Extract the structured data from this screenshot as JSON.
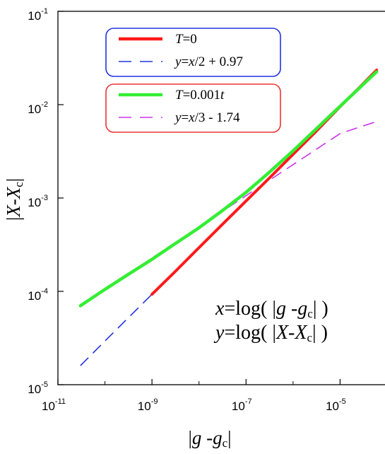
{
  "chart_data": {
    "type": "line",
    "xscale": "log",
    "yscale": "log",
    "xlim": [
      1e-11,
      0.0001
    ],
    "ylim": [
      1e-05,
      0.1
    ],
    "grid": false,
    "x_ticks": [
      {
        "base": "10",
        "exp": "-11",
        "value": 1e-11
      },
      {
        "base": "10",
        "exp": "-9",
        "value": 1e-09
      },
      {
        "base": "10",
        "exp": "-7",
        "value": 1e-07
      },
      {
        "base": "10",
        "exp": "-5",
        "value": 1e-05
      }
    ],
    "y_ticks": [
      {
        "base": "10",
        "exp": "-5",
        "value": 1e-05
      },
      {
        "base": "10",
        "exp": "-4",
        "value": 0.0001
      },
      {
        "base": "10",
        "exp": "-3",
        "value": 0.001
      },
      {
        "base": "10",
        "exp": "-2",
        "value": 0.01
      },
      {
        "base": "10",
        "exp": "-1",
        "value": 0.1
      }
    ],
    "xlabel": {
      "pre": "|",
      "var": "g",
      "mid": " -",
      "var2": "g",
      "sub": "c",
      "post": "|"
    },
    "ylabel": {
      "pre": "|",
      "var": "X",
      "mid": "-",
      "var2": "X",
      "sub": "c",
      "post": "|"
    },
    "legend_groups": [
      {
        "placement": "top-left",
        "border_color": "#2233dd",
        "entries": [
          {
            "series_index": 0,
            "label_parts": [
              {
                "t": "T",
                "i": true
              },
              {
                "t": "=0",
                "i": false
              }
            ]
          },
          {
            "series_index": 1,
            "label_parts": [
              {
                "t": "y",
                "i": true
              },
              {
                "t": "=",
                "i": false
              },
              {
                "t": "x",
                "i": true
              },
              {
                "t": "/2 + 0.97",
                "i": false
              }
            ]
          }
        ]
      },
      {
        "placement": "top-left",
        "border_color": "#ee3333",
        "entries": [
          {
            "series_index": 2,
            "label_parts": [
              {
                "t": "T",
                "i": true
              },
              {
                "t": "=0.001",
                "i": false
              },
              {
                "t": "t",
                "i": true
              }
            ]
          },
          {
            "series_index": 3,
            "label_parts": [
              {
                "t": "y",
                "i": true
              },
              {
                "t": "=",
                "i": false
              },
              {
                "t": "x",
                "i": true
              },
              {
                "t": "/3 - 1.74",
                "i": false
              }
            ]
          }
        ]
      }
    ],
    "annotations": [
      {
        "parts": [
          {
            "t": "x",
            "i": true
          },
          {
            "t": "=log( |",
            "i": false
          },
          {
            "t": "g",
            "i": true
          },
          {
            "t": " -",
            "i": false
          },
          {
            "t": "g",
            "i": true
          },
          {
            "t": "c",
            "i": false,
            "sub": true
          },
          {
            "t": "| )",
            "i": false
          }
        ]
      },
      {
        "parts": [
          {
            "t": "y",
            "i": true
          },
          {
            "t": "=log( |",
            "i": false
          },
          {
            "t": "X",
            "i": true
          },
          {
            "t": "-",
            "i": false
          },
          {
            "t": "X",
            "i": true
          },
          {
            "t": "c",
            "i": false,
            "sub": true
          },
          {
            "t": "| )",
            "i": false
          }
        ]
      }
    ],
    "series": [
      {
        "color": "#ff1a1a",
        "style": "solid",
        "width": 4,
        "x": [
          1e-09,
          3e-09,
          1e-08,
          3e-08,
          1e-07,
          3e-07,
          1e-06,
          3e-06,
          1e-05,
          3e-05,
          6e-05
        ],
        "y": [
          9.3e-05,
          0.00016,
          0.000294,
          0.00051,
          0.00093,
          0.0016,
          0.00294,
          0.0051,
          0.0095,
          0.0165,
          0.0235
        ]
      },
      {
        "color": "#2233dd",
        "style": "dashed",
        "width": 1.6,
        "x": [
          3e-11,
          1e-10,
          1e-09,
          1e-08,
          1e-07,
          1e-06,
          1e-05,
          6e-05
        ],
        "y": [
          1.6e-05,
          2.94e-05,
          9.3e-05,
          0.000294,
          0.00093,
          0.00294,
          0.0093,
          0.0228
        ]
      },
      {
        "color": "#33ee33",
        "style": "solid",
        "width": 4.5,
        "x": [
          3e-11,
          1e-10,
          3e-10,
          1e-09,
          3e-09,
          1e-08,
          3e-08,
          1e-07,
          3e-07,
          1e-06,
          3e-06,
          1e-05,
          3e-05,
          6e-05
        ],
        "y": [
          7e-05,
          0.000105,
          0.00015,
          0.00022,
          0.00032,
          0.00048,
          0.00072,
          0.00115,
          0.00185,
          0.0032,
          0.0054,
          0.0096,
          0.0162,
          0.0225
        ]
      },
      {
        "color": "#cc33ee",
        "style": "dashed",
        "width": 1.6,
        "x": [
          3e-11,
          1e-10,
          1e-09,
          1e-08,
          1e-07,
          1e-06,
          1e-05,
          6e-05
        ],
        "y": [
          7.1e-05,
          0.000106,
          0.000228,
          0.00049,
          0.00106,
          0.00228,
          0.0049,
          0.0066
        ]
      }
    ]
  }
}
